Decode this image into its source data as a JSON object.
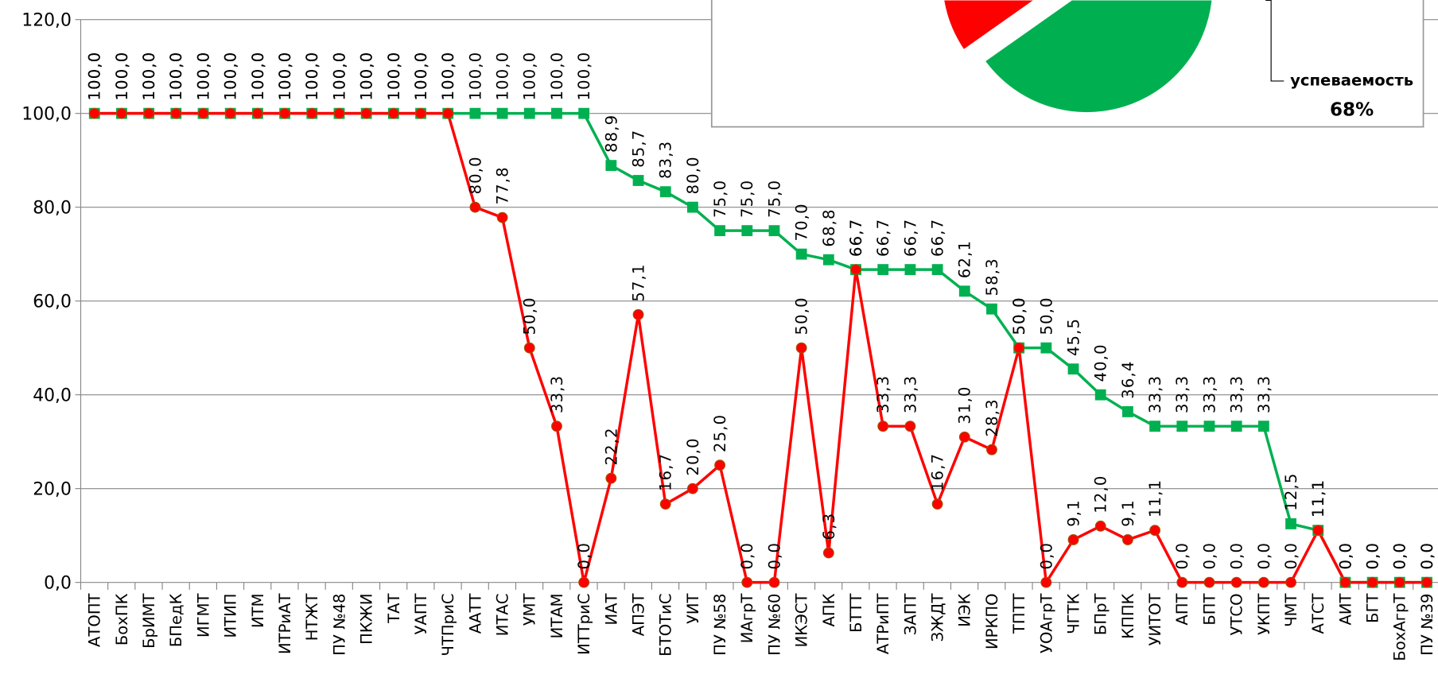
{
  "chart_data": [
    {
      "type": "line",
      "categories": [
        "АТОПТ",
        "БохПК",
        "БрИМТ",
        "БПедК",
        "ИГМТ",
        "ИТИП",
        "ИТМ",
        "ИТРиАТ",
        "НТЖТ",
        "ПУ №48",
        "ПКЖИ",
        "ТАТ",
        "УАПТ",
        "ЧТПриС",
        "ААТТ",
        "ИТАС",
        "УМТ",
        "ИТАМ",
        "ИТТриС",
        "ИАТ",
        "АПЭТ",
        "БТОТиС",
        "УИТ",
        "ПУ №58",
        "ИАгрТ",
        "ПУ №60",
        "ИКЭСТ",
        "АПК",
        "БТТТ",
        "АТРиПТ",
        "ЗАПТ",
        "ЗЖДТ",
        "ИЭК",
        "ИРКПО",
        "ТПТТ",
        "УОАгрТ",
        "ЧГТК",
        "БПрТ",
        "КППК",
        "УИТОТ",
        "АПТ",
        "БПТ",
        "УТСО",
        "УКПТ",
        "ЧМТ",
        "АТСТ",
        "АИТ",
        "БГТ",
        "БохАгрТ",
        "ПУ №39"
      ],
      "ylim": [
        0,
        120
      ],
      "yticks": [
        {
          "value": 0,
          "label": "0,0"
        },
        {
          "value": 20,
          "label": "20,0"
        },
        {
          "value": 40,
          "label": "40,0"
        },
        {
          "value": 60,
          "label": "60,0"
        },
        {
          "value": 80,
          "label": "80,0"
        },
        {
          "value": 100,
          "label": "100,0"
        },
        {
          "value": 120,
          "label": "120,0"
        }
      ],
      "grid": true,
      "series": [
        {
          "color": "#00b050",
          "marker": "square",
          "values": [
            100,
            100,
            100,
            100,
            100,
            100,
            100,
            100,
            100,
            100,
            100,
            100,
            100,
            100,
            100,
            100,
            100,
            100,
            100,
            88.9,
            85.7,
            83.3,
            80,
            75,
            75,
            75,
            70,
            68.8,
            66.7,
            66.7,
            66.7,
            66.7,
            62.1,
            58.3,
            50,
            50,
            45.5,
            40,
            36.4,
            33.3,
            33.3,
            33.3,
            33.3,
            33.3,
            12.5,
            11.1,
            0,
            0,
            0,
            0
          ],
          "value_labels": [
            "100,0",
            "100,0",
            "100,0",
            "100,0",
            "100,0",
            "100,0",
            "100,0",
            "100,0",
            "100,0",
            "100,0",
            "100,0",
            "100,0",
            "100,0",
            "100,0",
            "100,0",
            "100,0",
            "100,0",
            "100,0",
            "100,0",
            "88,9",
            "85,7",
            "83,3",
            "80,0",
            "75,0",
            "75,0",
            "75,0",
            "70,0",
            "68,8",
            "66,7",
            "66,7",
            "66,7",
            "66,7",
            "62,1",
            "58,3",
            "50,0",
            "50,0",
            "45,5",
            "40,0",
            "36,4",
            "33,3",
            "33,3",
            "33,3",
            "33,3",
            "33,3",
            "12,5",
            "11,1",
            "0,0",
            "0,0",
            "0,0",
            "0,0"
          ]
        },
        {
          "color": "#ff0000",
          "marker": "circle",
          "values": [
            100,
            100,
            100,
            100,
            100,
            100,
            100,
            100,
            100,
            100,
            100,
            100,
            100,
            100,
            80,
            77.8,
            50,
            33.3,
            0,
            22.2,
            57.1,
            16.7,
            20,
            25,
            0,
            0,
            50,
            6.3,
            66.7,
            33.3,
            33.3,
            16.7,
            31,
            28.3,
            50,
            0,
            9.1,
            12,
            9.1,
            11.1,
            0,
            0,
            0,
            0,
            0,
            11.1,
            0,
            0,
            0,
            0
          ],
          "value_labels": [
            "100,0",
            "100,0",
            "100,0",
            "100,0",
            "100,0",
            "100,0",
            "100,0",
            "100,0",
            "100,0",
            "100,0",
            "100,0",
            "100,0",
            "100,0",
            "100,0",
            "80,0",
            "77,8",
            "50,0",
            "33,3",
            "0,0",
            "22,2",
            "57,1",
            "16,7",
            "20,0",
            "25,0",
            "0,0",
            "0,0",
            "50,0",
            "6,3",
            "66,7",
            "33,3",
            "33,3",
            "16,7",
            "31,0",
            "28,3",
            "50,0",
            "0,0",
            "9,1",
            "12,0",
            "9,1",
            "11,1",
            "0,0",
            "0,0",
            "0,0",
            "0,0",
            "0,0",
            "11,1",
            "0,0",
            "0,0",
            "0,0",
            "0,0"
          ]
        }
      ]
    },
    {
      "type": "pie",
      "categories": [
        "успеваемость",
        null
      ],
      "values": [
        68,
        32
      ],
      "value_labels": [
        "68%",
        null
      ],
      "colors": [
        "#00b050",
        "#ff0000"
      ]
    }
  ]
}
